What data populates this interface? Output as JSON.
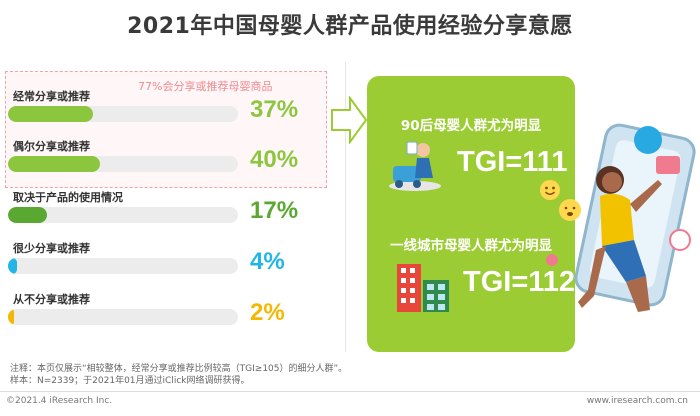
{
  "title": "2021年中国母婴人群产品使用经验分享意愿",
  "highlight_note": "77%会分享或推荐母婴商品",
  "chart_data": {
    "type": "bar",
    "title": "",
    "categories": [
      "经常分享或推荐",
      "偶尔分享或推荐",
      "取决于产品的使用情况",
      "很少分享或推荐",
      "从不分享或推荐"
    ],
    "values": [
      37,
      40,
      17,
      4,
      2
    ],
    "value_labels": [
      "37%",
      "40%",
      "17%",
      "4%",
      "2%"
    ],
    "colors": [
      "#8cc63f",
      "#8cc63f",
      "#5aa832",
      "#22b5e6",
      "#f5b800"
    ],
    "label_colors": [
      "#8cc63f",
      "#8cc63f",
      "#5aa832",
      "#22b5e6",
      "#f5b800"
    ],
    "ylim": [
      0,
      100
    ]
  },
  "panel": {
    "insight1": "90后母婴人群尤为明显",
    "tgi1": "TGI=111",
    "insight2": "一线城市母婴人群尤为明显",
    "tgi2": "TGI=112"
  },
  "footnote": {
    "line1": "注释：本页仅展示“相较整体，经常分享或推荐比例较高（TGI≥105）的细分人群”。",
    "line2": "样本：N=2339；于2021年01月通过iClick网络调研获得。"
  },
  "copyright": "©2021.4 iResearch Inc.",
  "site": "www.iresearch.com.cn"
}
